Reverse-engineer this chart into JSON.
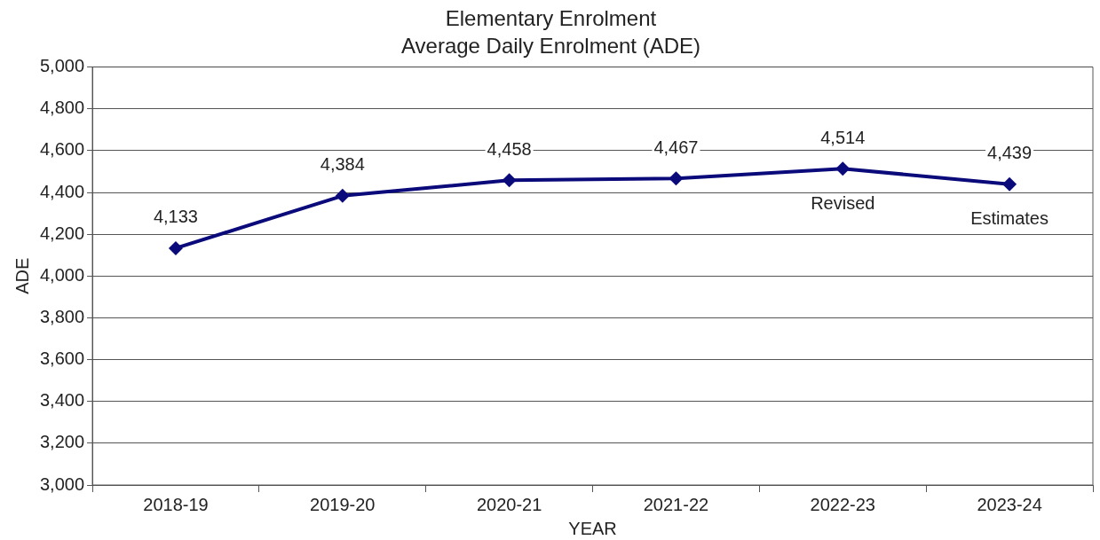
{
  "chart_data": {
    "type": "line",
    "title": "Elementary Enrolment",
    "subtitle": "Average Daily Enrolment (ADE)",
    "xlabel": "YEAR",
    "ylabel": "ADE",
    "categories": [
      "2018-19",
      "2019-20",
      "2020-21",
      "2021-22",
      "2022-23",
      "2023-24"
    ],
    "series": [
      {
        "color": "#0a0a7a",
        "values": [
          4133,
          4384,
          4458,
          4467,
          4514,
          4439
        ],
        "value_labels": [
          "4,133",
          "4,384",
          "4,458",
          "4,467",
          "4,514",
          "4,439"
        ]
      }
    ],
    "ylim": [
      3000,
      5000
    ],
    "yticks": [
      {
        "value": 3000,
        "label": "3,000"
      },
      {
        "value": 3200,
        "label": "3,200"
      },
      {
        "value": 3400,
        "label": "3,400"
      },
      {
        "value": 3600,
        "label": "3,600"
      },
      {
        "value": 3800,
        "label": "3,800"
      },
      {
        "value": 4000,
        "label": "4,000"
      },
      {
        "value": 4200,
        "label": "4,200"
      },
      {
        "value": 4400,
        "label": "4,400"
      },
      {
        "value": 4600,
        "label": "4,600"
      },
      {
        "value": 4800,
        "label": "4,800"
      },
      {
        "value": 5000,
        "label": "5,000"
      }
    ],
    "annotations": [
      "Revised",
      "Estimates"
    ],
    "grid": "y",
    "legend": false,
    "marker": "diamond",
    "line_style": "solid"
  }
}
